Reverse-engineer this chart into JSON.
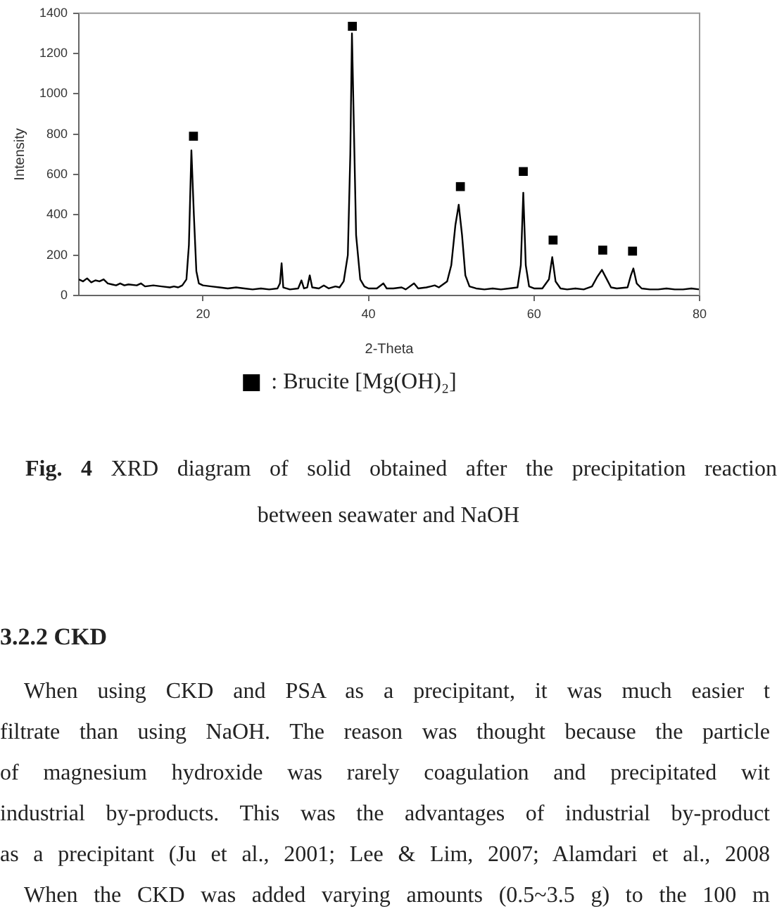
{
  "chart_data": {
    "type": "line",
    "xlabel": "2-Theta",
    "ylabel": "Intensity",
    "xlim": [
      5,
      80
    ],
    "xticks": [
      20,
      40,
      60,
      80
    ],
    "ylim": [
      0,
      1400
    ],
    "yticks": [
      0,
      200,
      400,
      600,
      800,
      1000,
      1200,
      1400
    ],
    "grid": false,
    "legend": "bottom",
    "series": [
      {
        "color": "#000000",
        "marker": "none",
        "x": [
          5,
          5.5,
          6,
          6.5,
          7,
          7.5,
          8,
          8.5,
          9,
          9.5,
          10,
          10.5,
          11,
          12,
          12.5,
          13,
          14,
          15,
          16,
          16.5,
          17,
          17.5,
          18,
          18.3,
          18.6,
          18.9,
          19.2,
          19.5,
          20,
          21,
          22,
          23,
          24,
          25,
          26,
          27,
          28,
          29,
          29.3,
          29.5,
          29.7,
          30.5,
          31.5,
          31.9,
          32.2,
          32.6,
          32.9,
          33.2,
          34,
          34.6,
          35.2,
          36,
          36.5,
          37,
          37.5,
          37.8,
          38,
          38.2,
          38.5,
          39,
          39.5,
          40,
          41,
          41.8,
          42.2,
          43,
          44,
          44.5,
          45.5,
          46,
          47,
          47.5,
          48,
          48.5,
          49.5,
          50,
          50.5,
          50.9,
          51.3,
          51.7,
          52.2,
          53,
          54,
          55,
          56,
          57,
          58,
          58.4,
          58.7,
          59,
          59.4,
          60,
          61,
          61.8,
          62.2,
          62.6,
          63.2,
          64,
          65,
          66,
          67,
          67.6,
          68.2,
          68.8,
          69.3,
          70,
          71.3,
          71.7,
          72,
          72.4,
          73,
          74,
          75,
          76,
          77,
          78,
          79,
          80
        ],
        "values": [
          80,
          70,
          85,
          65,
          75,
          70,
          80,
          60,
          55,
          50,
          60,
          50,
          55,
          50,
          60,
          45,
          50,
          45,
          40,
          45,
          40,
          50,
          80,
          250,
          720,
          400,
          120,
          60,
          50,
          45,
          40,
          35,
          40,
          35,
          30,
          35,
          30,
          35,
          60,
          160,
          40,
          30,
          35,
          75,
          35,
          40,
          100,
          40,
          35,
          50,
          35,
          45,
          40,
          70,
          200,
          700,
          1300,
          900,
          300,
          80,
          45,
          35,
          35,
          60,
          35,
          35,
          40,
          30,
          60,
          35,
          40,
          45,
          50,
          40,
          70,
          150,
          350,
          450,
          300,
          100,
          45,
          35,
          30,
          35,
          30,
          35,
          40,
          150,
          510,
          150,
          45,
          35,
          35,
          80,
          190,
          70,
          35,
          30,
          35,
          30,
          45,
          90,
          127,
          80,
          40,
          35,
          40,
          100,
          134,
          60,
          35,
          30,
          30,
          35,
          30,
          30,
          35,
          30
        ]
      },
      {
        "type": "scatter",
        "name": ": Brucite [Mg(OH)₂]",
        "color": "#000000",
        "marker": "square",
        "x": [
          18.85,
          38.05,
          51.1,
          58.7,
          62.3,
          68.3,
          71.9
        ],
        "values": [
          790,
          1335,
          540,
          615,
          275,
          225,
          220
        ]
      }
    ],
    "annotations": [
      "Fig. 4 XRD diagram of solid obtained after the precipitation reaction",
      "between seawater and NaOH",
      "3.2.2 CKD",
      "When using CKD and PSA as a precipitant, it was much easier t",
      "filtrate than using NaOH. The reason was thought because the particle",
      "of magnesium hydroxide was rarely coagulation and precipitated wit",
      "industrial by-products. This was the advantages of industrial by-product",
      "as a precipitant (Ju et al., 2001; Lee & Lim, 2007; Alamdari et al., 2008",
      "When the CKD was added varying amounts (0.5~3.5 g) to the 100 m"
    ]
  }
}
